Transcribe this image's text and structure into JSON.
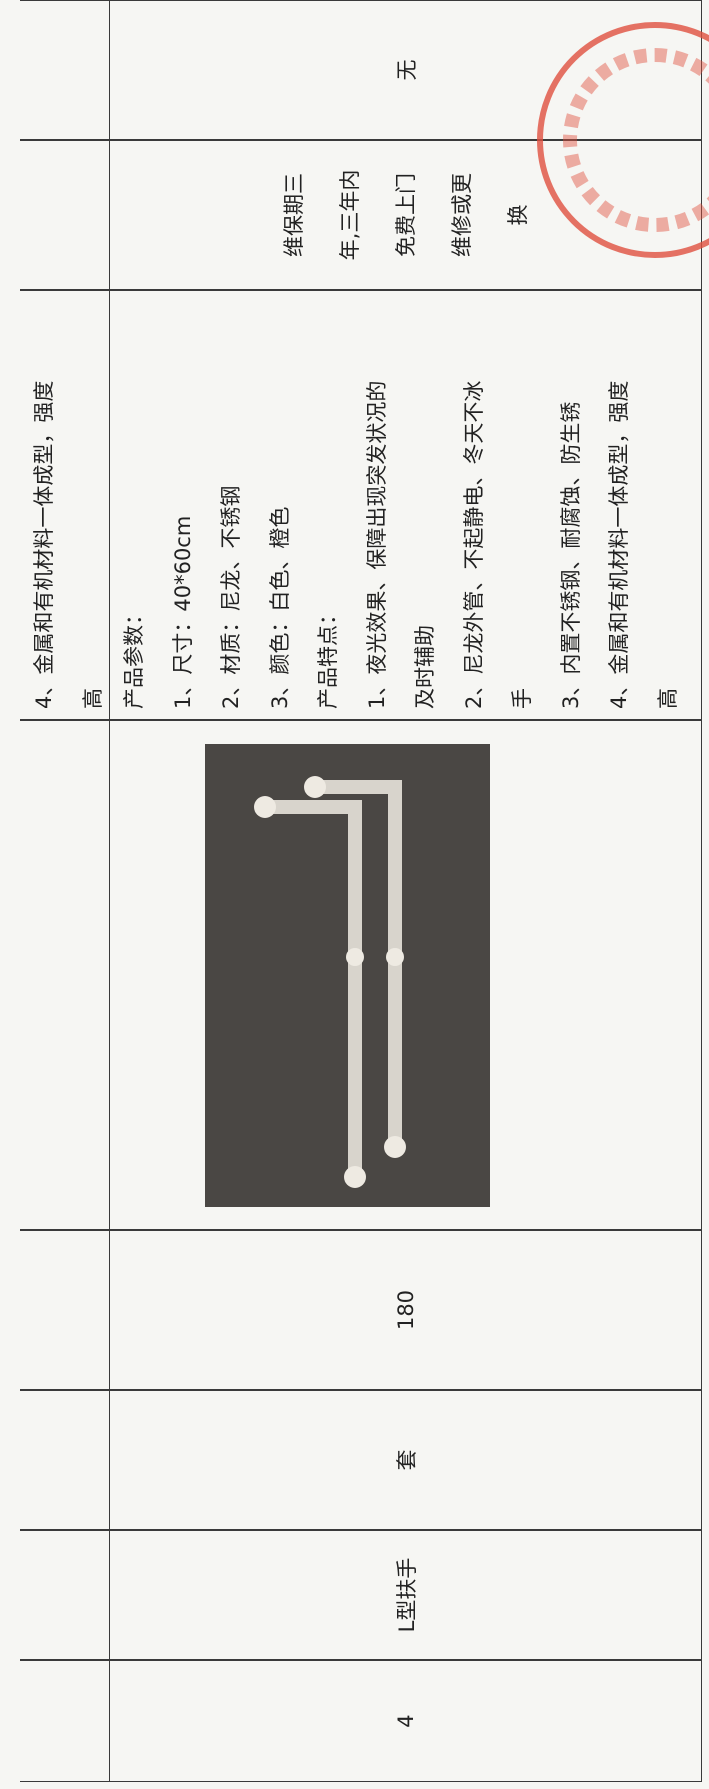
{
  "previous_row": {
    "description": [
      "4、金属和有机材料一体成型，强度",
      "高"
    ]
  },
  "table": {
    "rows": [
      {
        "index": "4",
        "name": "L型扶手",
        "unit": "套",
        "quantity": "180",
        "description": [
          "产品参数：",
          "1、尺寸：40*60cm",
          "2、材质：尼龙、不锈钢",
          "3、颜色：白色、橙色",
          "产品特点：",
          "1、夜光效果、保障出现突发状况的",
          "及时辅助",
          "2、尼龙外管、不起静电、冬天不冰",
          "手",
          "3、内置不锈钢、耐腐蚀、防生锈",
          "4、金属和有机材料一体成型，强度",
          "高"
        ],
        "warranty": [
          "维保期三",
          "年,三年内",
          "免费上门",
          "维修或更",
          "换"
        ],
        "remark": "无"
      }
    ]
  }
}
